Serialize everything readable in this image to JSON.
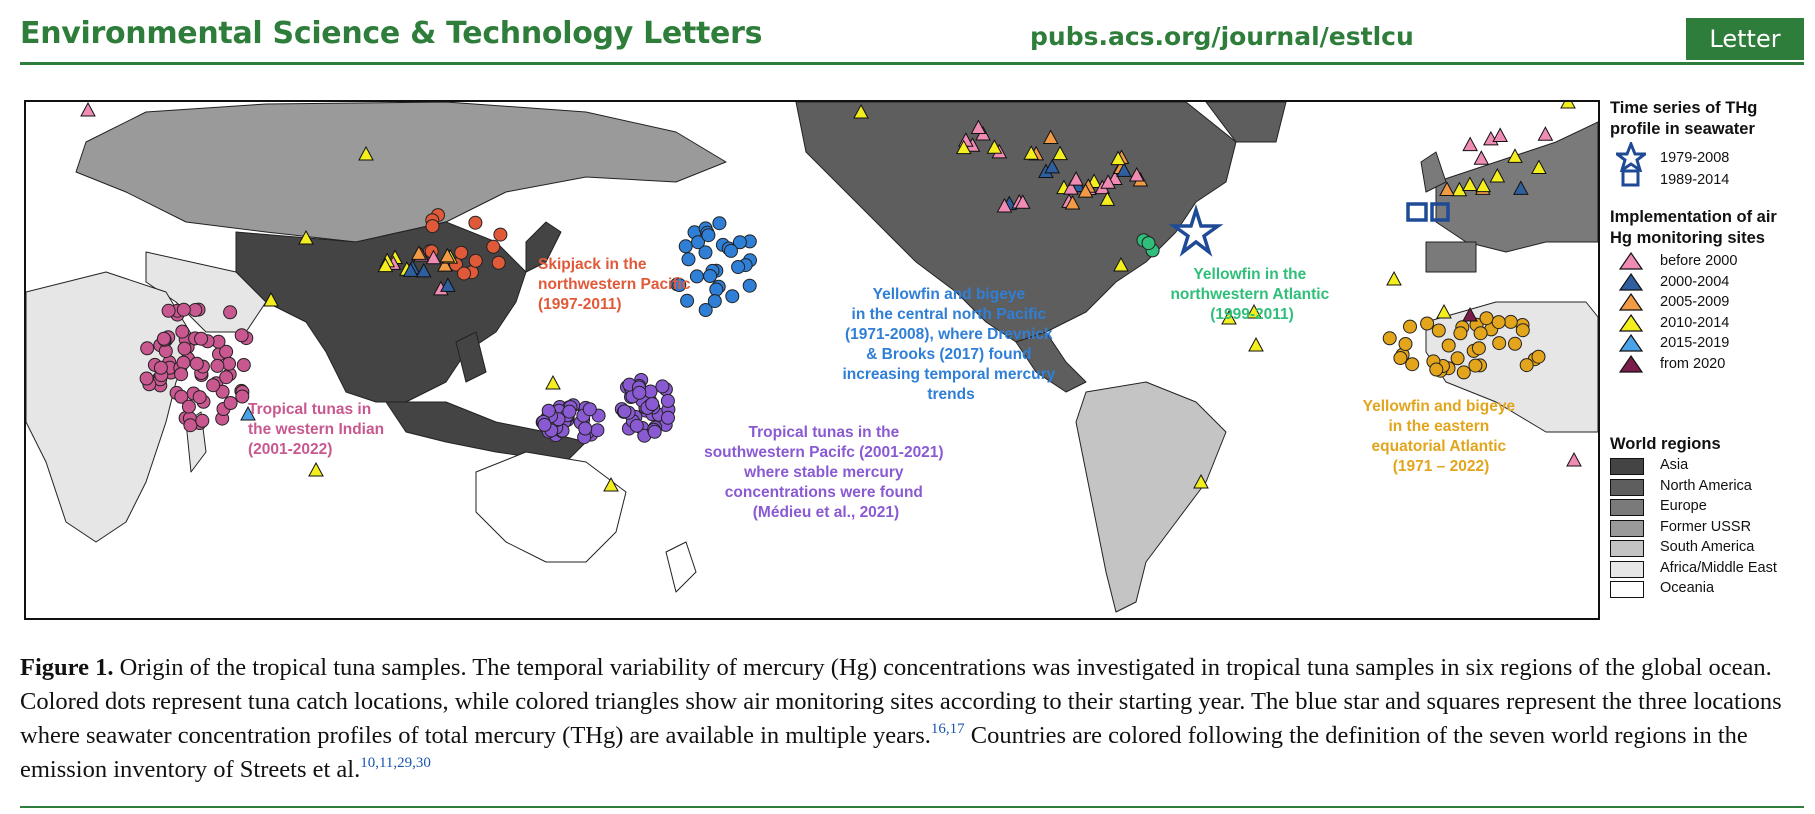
{
  "header": {
    "journal": "Environmental Science & Technology Letters",
    "url": "pubs.acs.org/journal/estlcu",
    "badge": "Letter",
    "accent_color": "#2e7d3a"
  },
  "map": {
    "region_labels": {
      "skipjack": [
        "Skipjack in the",
        "northwestern Pacific",
        "(1997-2011)"
      ],
      "central_pacific": [
        "Yellowfin and bigeye",
        "in the central north Pacific",
        "(1971-2008), where Drevnick",
        "& Brooks (2017) found",
        "increasing temporal mercury",
        "trends"
      ],
      "nw_atlantic": [
        "Yellowfin in the",
        "northwestern Atlantic",
        "(1999-2011)"
      ],
      "indian": [
        "Tropical tunas in",
        "the western Indian",
        "(2001-2022)"
      ],
      "sw_pacific": [
        "Tropical tunas in the",
        "southwestern Pacifc (2001-2021)",
        "where stable mercury",
        "concentrations were found",
        "(Médieu et al., 2021)"
      ],
      "eq_atlantic": [
        "Yellowfin and bigeye",
        "in the eastern",
        "equatorial Atlantic",
        "(1971 – 2022)"
      ]
    },
    "label_colors": {
      "skipjack": "#e05a3a",
      "central_pacific": "#2f7fd6",
      "nw_atlantic": "#2fbf7a",
      "indian": "#c8588f",
      "sw_pacific": "#8a5ad2",
      "eq_atlantic": "#e2a51c"
    }
  },
  "legend": {
    "seawater_title": [
      "Time series of THg",
      "profile in seawater"
    ],
    "seawater_items": [
      {
        "label": "1979-2008",
        "icon": "star-icon",
        "color": "#1f4a96"
      },
      {
        "label": "1989-2014",
        "icon": "square-icon",
        "color": "#1f4a96"
      }
    ],
    "air_title": [
      "Implementation of air",
      "Hg monitoring sites"
    ],
    "air_items": [
      {
        "label": "before 2000",
        "color": "#f08bb4"
      },
      {
        "label": "2000-2004",
        "color": "#2f5f9e"
      },
      {
        "label": "2005-2009",
        "color": "#f29b44"
      },
      {
        "label": "2010-2014",
        "color": "#f4ee1e"
      },
      {
        "label": "2015-2019",
        "color": "#4aa3e8"
      },
      {
        "label": "from 2020",
        "color": "#7b1d4a"
      }
    ],
    "regions_title": "World regions",
    "region_items": [
      {
        "label": "Asia",
        "color": "#444444"
      },
      {
        "label": "North America",
        "color": "#5e5e5e"
      },
      {
        "label": "Europe",
        "color": "#7a7a7a"
      },
      {
        "label": "Former USSR",
        "color": "#9a9a9a"
      },
      {
        "label": "South America",
        "color": "#c4c4c4"
      },
      {
        "label": "Africa/Middle East",
        "color": "#e6e6e6"
      },
      {
        "label": "Oceania",
        "color": "#ffffff"
      }
    ]
  },
  "caption": {
    "label": "Figure 1.",
    "text1": " Origin of the tropical tuna samples. The temporal variability of mercury (Hg) concentrations was investigated in tropical tuna samples in six regions of the global ocean. Colored dots represent tuna catch locations, while colored triangles show air monitoring sites according to their starting year. The blue star and squares represent the three locations where seawater concentration profiles of total mercury (THg) are available in multiple years.",
    "ref1": "16,17",
    "text2": " Countries are colored following the definition of the seven world regions in the emission inventory of Streets et al.",
    "ref2": "10,11,29,30"
  }
}
